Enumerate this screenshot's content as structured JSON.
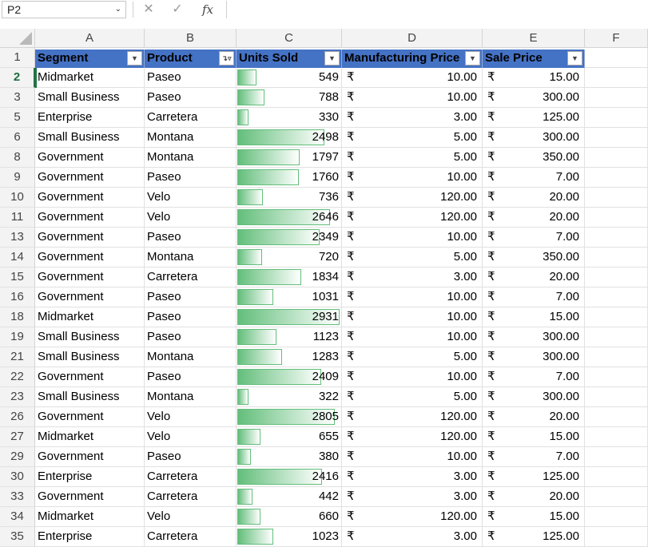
{
  "formula_bar": {
    "name_box": "P2",
    "cancel_icon": "x-icon",
    "enter_icon": "check-icon",
    "function_label": "fx",
    "formula": ""
  },
  "columns": [
    "A",
    "B",
    "C",
    "D",
    "E",
    "F"
  ],
  "header_row": {
    "row_number": "1",
    "labels": [
      "Segment",
      "Product",
      "Units Sold",
      "Manufacturing Price",
      "Sale Price"
    ],
    "filter_icons": [
      "chevron-down-icon",
      "filter-applied-icon",
      "chevron-down-icon",
      "chevron-down-icon",
      "chevron-down-icon"
    ]
  },
  "active_row": "2",
  "currency_symbol": "₹",
  "data_bar_color": "#63be7b",
  "header_color": "#4472c4",
  "data_bar_max": 2931,
  "rows": [
    {
      "row": "2",
      "segment": "Midmarket",
      "product": "Paseo",
      "units": "549",
      "mfg": "10.00",
      "sale": "15.00"
    },
    {
      "row": "3",
      "segment": "Small Business",
      "product": "Paseo",
      "units": "788",
      "mfg": "10.00",
      "sale": "300.00"
    },
    {
      "row": "5",
      "segment": "Enterprise",
      "product": "Carretera",
      "units": "330",
      "mfg": "3.00",
      "sale": "125.00"
    },
    {
      "row": "6",
      "segment": "Small Business",
      "product": "Montana",
      "units": "2498",
      "mfg": "5.00",
      "sale": "300.00"
    },
    {
      "row": "8",
      "segment": "Government",
      "product": "Montana",
      "units": "1797",
      "mfg": "5.00",
      "sale": "350.00"
    },
    {
      "row": "9",
      "segment": "Government",
      "product": "Paseo",
      "units": "1760",
      "mfg": "10.00",
      "sale": "7.00"
    },
    {
      "row": "10",
      "segment": "Government",
      "product": "Velo",
      "units": "736",
      "mfg": "120.00",
      "sale": "20.00"
    },
    {
      "row": "11",
      "segment": "Government",
      "product": "Velo",
      "units": "2646",
      "mfg": "120.00",
      "sale": "20.00"
    },
    {
      "row": "13",
      "segment": "Government",
      "product": "Paseo",
      "units": "2349",
      "mfg": "10.00",
      "sale": "7.00"
    },
    {
      "row": "14",
      "segment": "Government",
      "product": "Montana",
      "units": "720",
      "mfg": "5.00",
      "sale": "350.00"
    },
    {
      "row": "15",
      "segment": "Government",
      "product": "Carretera",
      "units": "1834",
      "mfg": "3.00",
      "sale": "20.00"
    },
    {
      "row": "16",
      "segment": "Government",
      "product": "Paseo",
      "units": "1031",
      "mfg": "10.00",
      "sale": "7.00"
    },
    {
      "row": "18",
      "segment": "Midmarket",
      "product": "Paseo",
      "units": "2931",
      "mfg": "10.00",
      "sale": "15.00"
    },
    {
      "row": "19",
      "segment": "Small Business",
      "product": "Paseo",
      "units": "1123",
      "mfg": "10.00",
      "sale": "300.00"
    },
    {
      "row": "21",
      "segment": "Small Business",
      "product": "Montana",
      "units": "1283",
      "mfg": "5.00",
      "sale": "300.00"
    },
    {
      "row": "22",
      "segment": "Government",
      "product": "Paseo",
      "units": "2409",
      "mfg": "10.00",
      "sale": "7.00"
    },
    {
      "row": "23",
      "segment": "Small Business",
      "product": "Montana",
      "units": "322",
      "mfg": "5.00",
      "sale": "300.00"
    },
    {
      "row": "26",
      "segment": "Government",
      "product": "Velo",
      "units": "2805",
      "mfg": "120.00",
      "sale": "20.00"
    },
    {
      "row": "27",
      "segment": "Midmarket",
      "product": "Velo",
      "units": "655",
      "mfg": "120.00",
      "sale": "15.00"
    },
    {
      "row": "29",
      "segment": "Government",
      "product": "Paseo",
      "units": "380",
      "mfg": "10.00",
      "sale": "7.00"
    },
    {
      "row": "30",
      "segment": "Enterprise",
      "product": "Carretera",
      "units": "2416",
      "mfg": "3.00",
      "sale": "125.00"
    },
    {
      "row": "33",
      "segment": "Government",
      "product": "Carretera",
      "units": "442",
      "mfg": "3.00",
      "sale": "20.00"
    },
    {
      "row": "34",
      "segment": "Midmarket",
      "product": "Velo",
      "units": "660",
      "mfg": "120.00",
      "sale": "15.00"
    },
    {
      "row": "35",
      "segment": "Enterprise",
      "product": "Carretera",
      "units": "1023",
      "mfg": "3.00",
      "sale": "125.00"
    }
  ]
}
